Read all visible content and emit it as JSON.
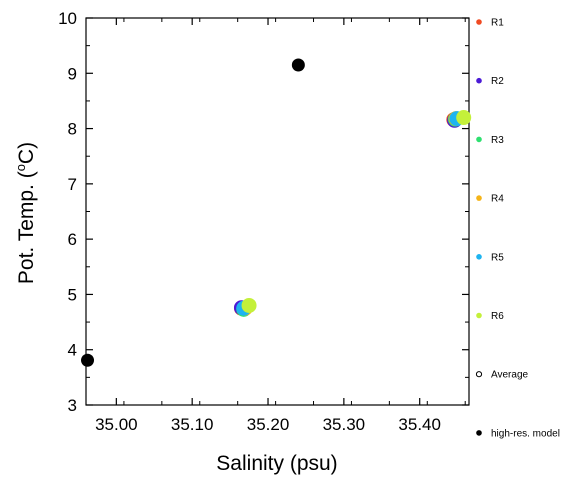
{
  "chart_data": {
    "type": "scatter",
    "xlabel": "Salinity (psu)",
    "ylabel_parts": [
      "Pot. Temp. (",
      "o",
      "C)"
    ],
    "xlim": [
      34.96,
      35.465
    ],
    "ylim": [
      3,
      10
    ],
    "x_ticks": [
      {
        "value": 35.0,
        "label": "35.00"
      },
      {
        "value": 35.1,
        "label": "35.10"
      },
      {
        "value": 35.2,
        "label": "35.20"
      },
      {
        "value": 35.3,
        "label": "35.30"
      },
      {
        "value": 35.4,
        "label": "35.40"
      }
    ],
    "y_ticks": [
      {
        "value": 3,
        "label": "3"
      },
      {
        "value": 4,
        "label": "4"
      },
      {
        "value": 5,
        "label": "5"
      },
      {
        "value": 6,
        "label": "6"
      },
      {
        "value": 7,
        "label": "7"
      },
      {
        "value": 8,
        "label": "8"
      },
      {
        "value": 9,
        "label": "9"
      },
      {
        "value": 10,
        "label": "10"
      }
    ],
    "legend_placement": "right",
    "grid": false,
    "series": [
      {
        "name": "R1",
        "color": "#f04a22",
        "marker": "filled-circle",
        "points": [
          [
            35.165,
            4.75
          ],
          [
            35.445,
            8.16
          ]
        ]
      },
      {
        "name": "R2",
        "color": "#4b1ad6",
        "marker": "filled-circle",
        "points": [
          [
            35.165,
            4.76
          ],
          [
            35.446,
            8.15
          ]
        ]
      },
      {
        "name": "R3",
        "color": "#2ee070",
        "marker": "filled-circle",
        "points": [
          [
            35.168,
            4.73
          ],
          [
            35.447,
            8.17
          ]
        ]
      },
      {
        "name": "R4",
        "color": "#f5b418",
        "marker": "filled-circle",
        "points": [
          [
            35.17,
            4.75
          ],
          [
            35.448,
            8.18
          ]
        ]
      },
      {
        "name": "R5",
        "color": "#1eb4f0",
        "marker": "filled-circle",
        "points": [
          [
            35.168,
            4.75
          ],
          [
            35.449,
            8.18
          ]
        ]
      },
      {
        "name": "R6",
        "color": "#c4f03a",
        "marker": "filled-circle",
        "points": [
          [
            35.175,
            4.8
          ],
          [
            35.458,
            8.2
          ]
        ]
      },
      {
        "name": "Average",
        "color": "#000000",
        "marker": "open-circle",
        "points": []
      },
      {
        "name": "high-res. model",
        "color": "#000000",
        "marker": "filled-circle",
        "points": [
          [
            34.962,
            3.81
          ],
          [
            35.24,
            9.15
          ]
        ]
      }
    ]
  }
}
